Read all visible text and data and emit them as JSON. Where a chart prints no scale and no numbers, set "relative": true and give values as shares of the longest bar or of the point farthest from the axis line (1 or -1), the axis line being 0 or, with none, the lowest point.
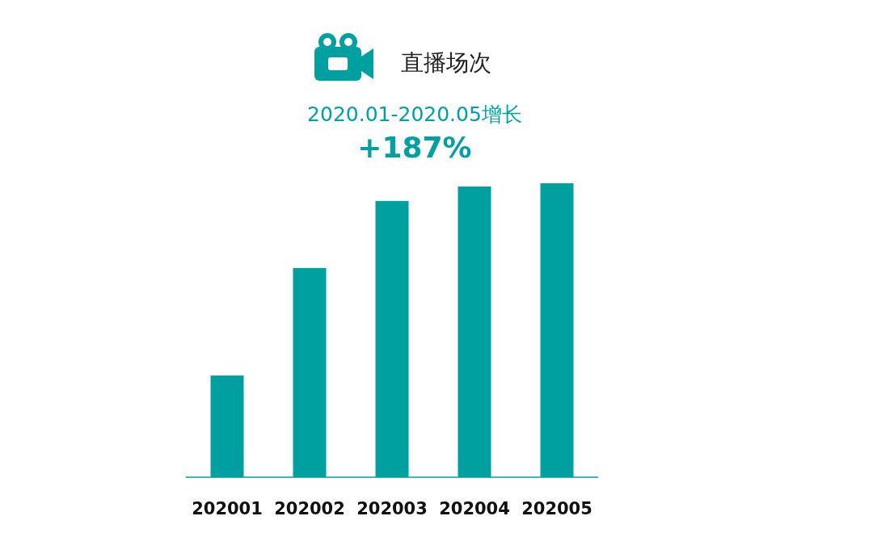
{
  "chart_data": {
    "type": "bar",
    "title": "直播场次",
    "subtitle": "2020.01-2020.05增长",
    "annotations": [
      "+187%"
    ],
    "categories": [
      "202001",
      "202002",
      "202003",
      "202004",
      "202005"
    ],
    "values": [
      0.346,
      0.712,
      0.94,
      0.989,
      1
    ],
    "color": "#00a0a0",
    "relative": true
  }
}
